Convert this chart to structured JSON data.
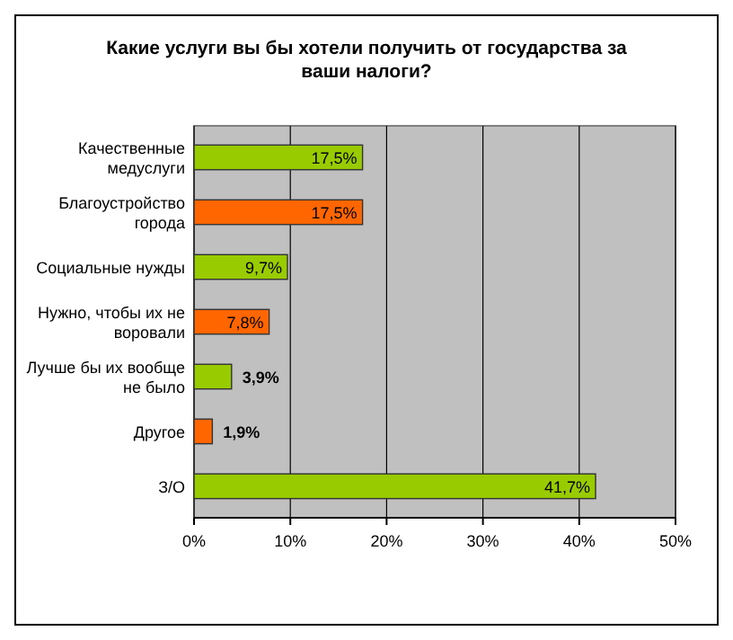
{
  "chart_data": {
    "type": "bar",
    "orientation": "horizontal",
    "title": "Какие услуги вы бы хотели получить от государства за ваши налоги?",
    "categories": [
      "Качественные медуслуги",
      "Благоустройство города",
      "Социальные нужды",
      "Нужно, чтобы их не воровали",
      "Лучше бы их вообще не было",
      "Другое",
      "З/О"
    ],
    "values": [
      17.5,
      17.5,
      9.7,
      7.8,
      3.9,
      1.9,
      41.7
    ],
    "value_labels": [
      "17,5%",
      "17,5%",
      "9,7%",
      "7,8%",
      "3,9%",
      "1,9%",
      "41,7%"
    ],
    "colors": [
      "#99cc00",
      "#ff6600",
      "#99cc00",
      "#ff6600",
      "#99cc00",
      "#ff6600",
      "#99cc00"
    ],
    "xlim": [
      0,
      50
    ],
    "xticks": [
      {
        "value": 0,
        "label": "0%"
      },
      {
        "value": 10,
        "label": "10%"
      },
      {
        "value": 20,
        "label": "20%"
      },
      {
        "value": 30,
        "label": "30%"
      },
      {
        "value": 40,
        "label": "40%"
      },
      {
        "value": 50,
        "label": "50%"
      }
    ],
    "grid": "x"
  }
}
